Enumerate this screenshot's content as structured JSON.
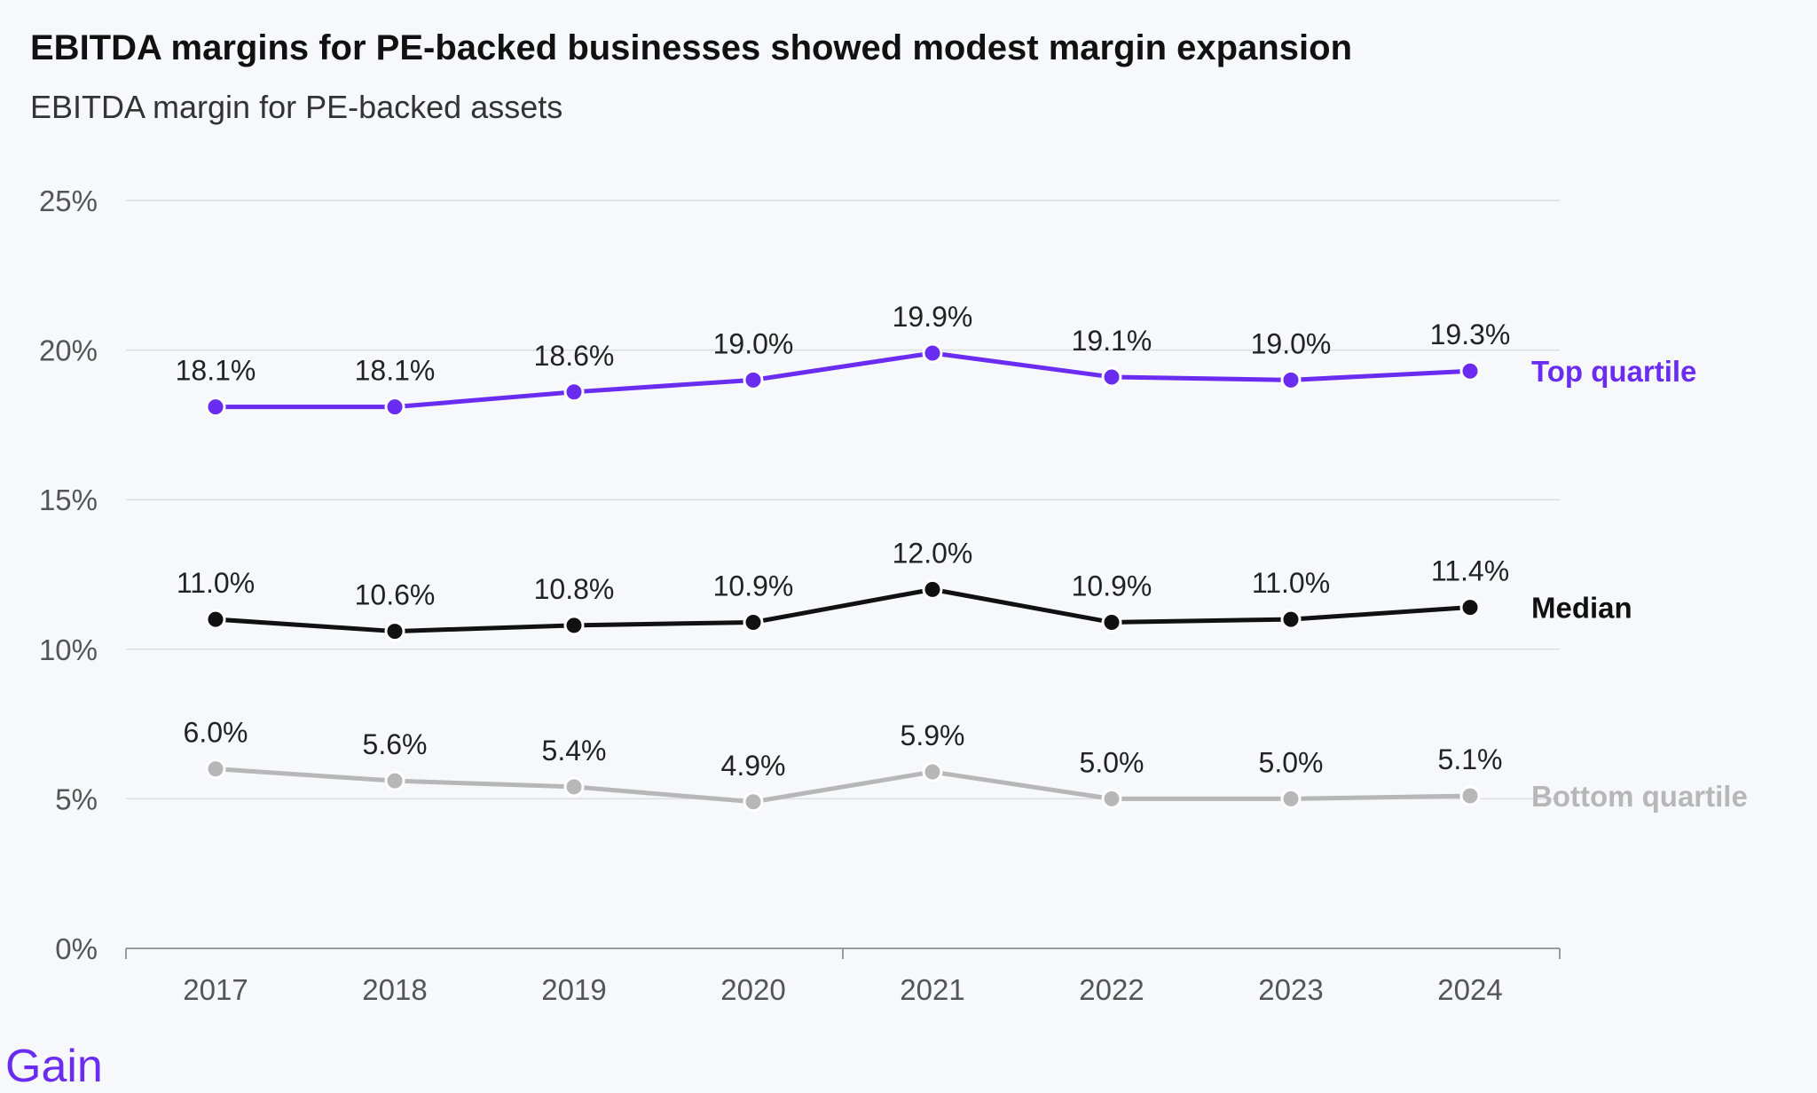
{
  "title": "EBITDA margins for PE-backed businesses showed modest margin expansion",
  "subtitle": "EBITDA margin for PE-backed assets",
  "logo_text": "Gain",
  "chart_data": {
    "type": "line",
    "title": "EBITDA margins for PE-backed businesses showed modest margin expansion",
    "subtitle": "EBITDA margin for PE-backed assets",
    "categories": [
      "2017",
      "2018",
      "2019",
      "2020",
      "2021",
      "2022",
      "2023",
      "2024"
    ],
    "ylim": [
      0,
      25
    ],
    "y_ticks": [
      0,
      5,
      10,
      15,
      20,
      25
    ],
    "y_tick_labels": [
      "0%",
      "5%",
      "10%",
      "15%",
      "20%",
      "25%"
    ],
    "grid": true,
    "legend": "direct labels at right of lines",
    "series": [
      {
        "name": "Top quartile",
        "color": "#6a2cf0",
        "values": [
          18.1,
          18.1,
          18.6,
          19.0,
          19.9,
          19.1,
          19.0,
          19.3
        ],
        "labels": [
          "18.1%",
          "18.1%",
          "18.6%",
          "19.0%",
          "19.9%",
          "19.1%",
          "19.0%",
          "19.3%"
        ]
      },
      {
        "name": "Median",
        "color": "#111111",
        "values": [
          11.0,
          10.6,
          10.8,
          10.9,
          12.0,
          10.9,
          11.0,
          11.4
        ],
        "labels": [
          "11.0%",
          "10.6%",
          "10.8%",
          "10.9%",
          "12.0%",
          "10.9%",
          "11.0%",
          "11.4%"
        ]
      },
      {
        "name": "Bottom quartile",
        "color": "#b7b7b7",
        "values": [
          6.0,
          5.6,
          5.4,
          4.9,
          5.9,
          5.0,
          5.0,
          5.1
        ],
        "labels": [
          "6.0%",
          "5.6%",
          "5.4%",
          "4.9%",
          "5.9%",
          "5.0%",
          "5.0%",
          "5.1%"
        ]
      }
    ]
  }
}
